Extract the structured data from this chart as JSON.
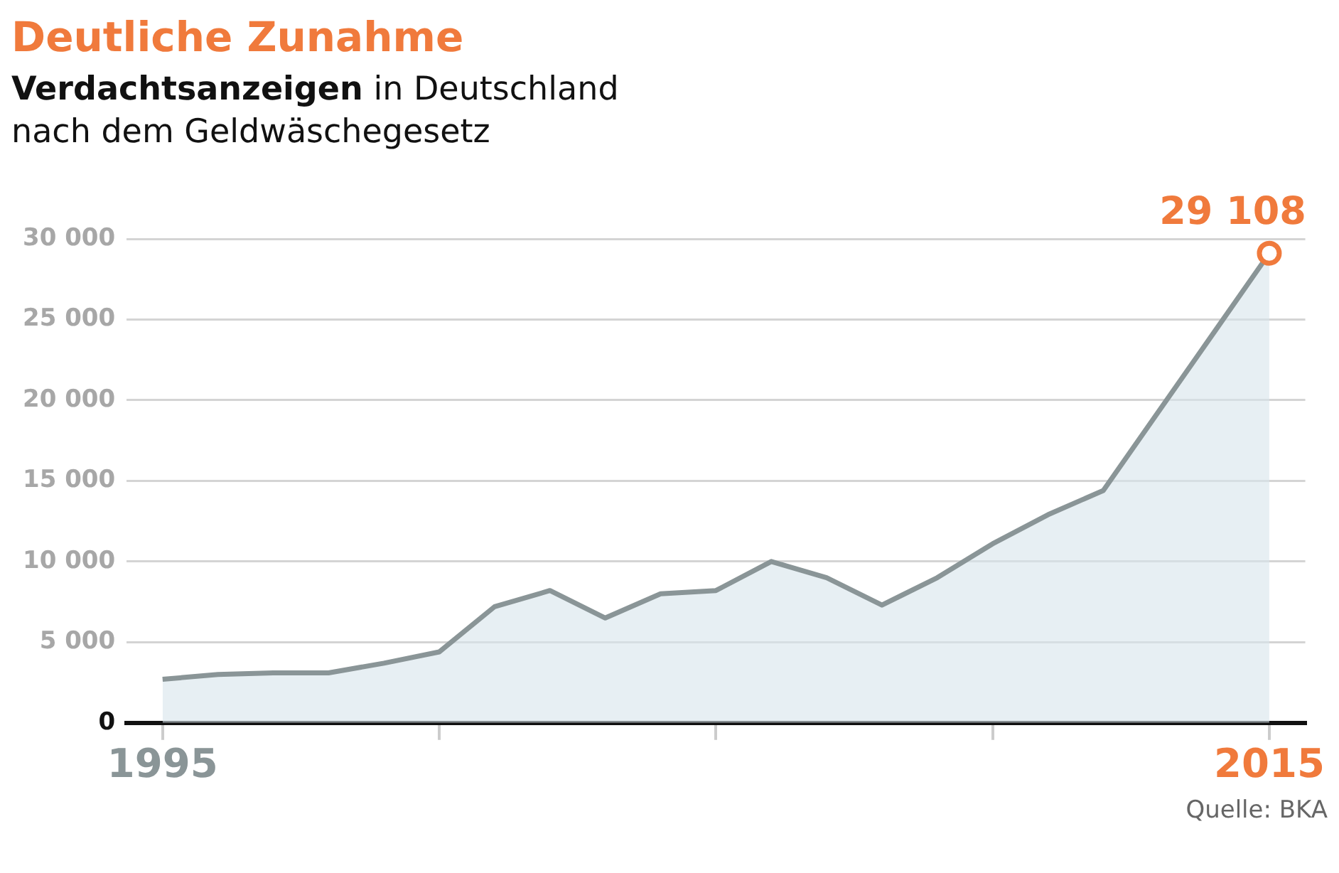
{
  "chart_data": {
    "type": "area",
    "title": "Deutliche Zunahme",
    "subtitle": "Verdachtsanzeigen in Deutschland nach dem Geldwäschegesetz",
    "x": [
      1995,
      1996,
      1997,
      1998,
      1999,
      2000,
      2001,
      2002,
      2003,
      2004,
      2005,
      2006,
      2007,
      2008,
      2009,
      2010,
      2011,
      2012,
      2013,
      2014,
      2015
    ],
    "series": [
      {
        "color": "#8a9597",
        "values": [
          2700,
          3000,
          3100,
          3100,
          3700,
          4400,
          7200,
          8200,
          6500,
          8000,
          8200,
          10000,
          9000,
          7300,
          9000,
          11100,
          12900,
          14400,
          19300,
          24200,
          29108
        ]
      }
    ],
    "xlim": [
      1994.35,
      2015.65
    ],
    "xticks": [
      1995,
      {
        "value": 2000,
        "label": null
      },
      {
        "value": 2005,
        "label": null
      },
      {
        "value": 2010,
        "label": null
      },
      2015
    ],
    "ylim": [
      0,
      30000
    ],
    "yticks": [
      0,
      {
        "value": 5000,
        "label": "5 000"
      },
      {
        "value": 10000,
        "label": "10 000"
      },
      {
        "value": 15000,
        "label": "15 000"
      },
      {
        "value": 20000,
        "label": "20 000"
      },
      {
        "value": 25000,
        "label": "25 000"
      },
      {
        "value": 30000,
        "label": "30 000"
      }
    ],
    "grid": "y",
    "legend": false,
    "annotations": [
      {
        "text": "29 108",
        "x": 2015,
        "y": 29108
      },
      "Quelle: BKA"
    ]
  }
}
